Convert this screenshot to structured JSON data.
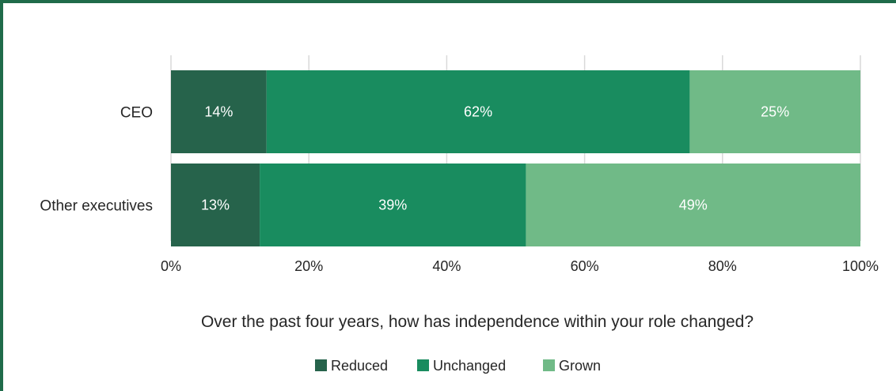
{
  "chart_data": {
    "type": "bar",
    "orientation": "horizontal",
    "stacked": true,
    "categories": [
      "CEO",
      "Other executives"
    ],
    "series": [
      {
        "name": "Reduced",
        "values": [
          14,
          13
        ],
        "labels": [
          "14%",
          "13%"
        ],
        "color": "#26634b"
      },
      {
        "name": "Unchanged",
        "values": [
          62,
          39
        ],
        "labels": [
          "62%",
          "39%"
        ],
        "color": "#198c5f"
      },
      {
        "name": "Grown",
        "values": [
          25,
          49
        ],
        "labels": [
          "25%",
          "49%"
        ],
        "color": "#70ba87"
      }
    ],
    "x_ticks": [
      "0%",
      "20%",
      "40%",
      "60%",
      "80%",
      "100%"
    ],
    "xlim": [
      0,
      100
    ],
    "xlabel": "Over the past four years, how has independence within your role changed?",
    "grid": true,
    "legend": "bottom"
  },
  "frame_color": "#1f6b4a",
  "grid_color": "#d9d9d9"
}
